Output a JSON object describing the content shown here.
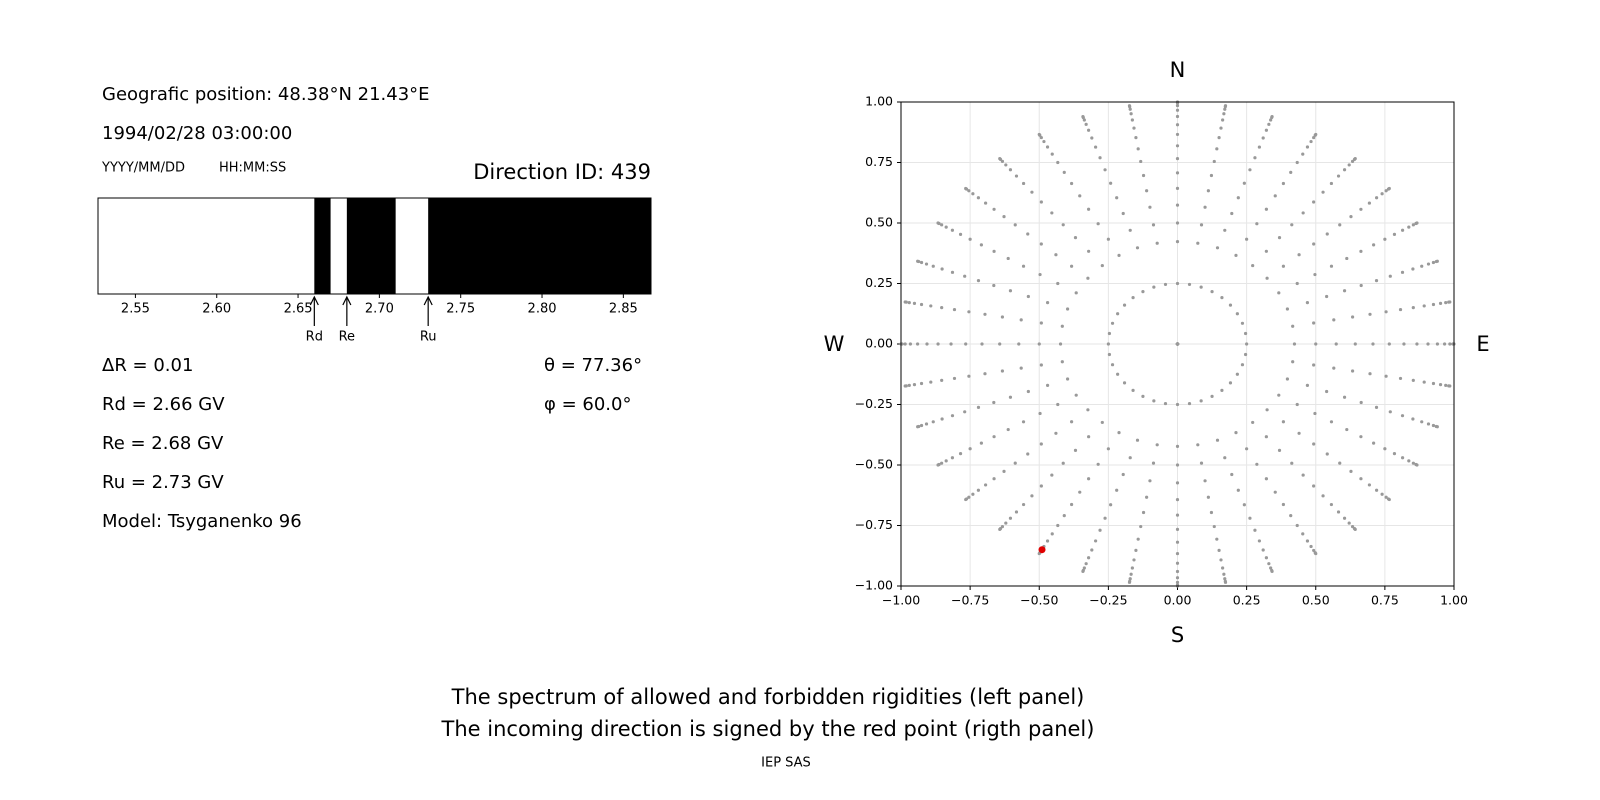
{
  "header": {
    "position": "Geografic position: 48.38°N 21.43°E",
    "datetime": "1994/02/28 03:00:00",
    "date_format": "YYYY/MM/DD",
    "time_format": "HH:MM:SS",
    "direction_id": "Direction ID: 439"
  },
  "info": {
    "delta_r": "ΔR = 0.01",
    "rd": "Rd = 2.66 GV",
    "re": "Re = 2.68 GV",
    "ru": "Ru = 2.73 GV",
    "model": "Model: Tsyganenko 96",
    "theta": "θ = 77.36°",
    "phi": "φ = 60.0°"
  },
  "chart_data": [
    {
      "type": "spectrum",
      "color": "#000000",
      "bands": [
        [
          2.66,
          2.67
        ],
        [
          2.68,
          2.71
        ],
        [
          2.73,
          2.867
        ]
      ],
      "markers": [
        {
          "label": "Rd",
          "value": 2.66
        },
        {
          "label": "Re",
          "value": 2.68
        },
        {
          "label": "Ru",
          "value": 2.73
        }
      ],
      "xlim": [
        2.527,
        2.867
      ],
      "xticks": [
        {
          "value": 2.55,
          "label": "2.55"
        },
        {
          "value": 2.6,
          "label": "2.60"
        },
        {
          "value": 2.65,
          "label": "2.65"
        },
        {
          "value": 2.7,
          "label": "2.70"
        },
        {
          "value": 2.75,
          "label": "2.75"
        },
        {
          "value": 2.8,
          "label": "2.80"
        },
        {
          "value": 2.85,
          "label": "2.85"
        }
      ]
    },
    {
      "type": "sky",
      "color": "#999999",
      "grid": true,
      "compass": {
        "north": "N",
        "south": "S",
        "west": "W",
        "east": "E"
      },
      "radii": [
        0,
        0.25,
        0.423,
        0.5,
        0.574,
        0.643,
        0.707,
        0.766,
        0.819,
        0.866,
        0.906,
        0.94,
        0.966,
        0.985,
        0.996,
        1.0
      ],
      "azimuths": [
        0,
        10,
        20,
        30,
        40,
        50,
        60,
        70,
        80,
        90,
        100,
        110,
        120,
        130,
        140,
        150,
        160,
        170,
        180,
        190,
        200,
        210,
        220,
        230,
        240,
        250,
        260,
        270,
        280,
        290,
        300,
        310,
        320,
        330,
        340,
        350
      ],
      "highlight": {
        "x": -0.49,
        "y": -0.85,
        "color": "#e00000"
      },
      "xlim": [
        -1,
        1
      ],
      "ylim": [
        -1,
        1
      ],
      "xticks": [
        {
          "value": -1,
          "label": "−1.00"
        },
        {
          "value": -0.75,
          "label": "−0.75"
        },
        {
          "value": -0.5,
          "label": "−0.50"
        },
        {
          "value": -0.25,
          "label": "−0.25"
        },
        {
          "value": 0,
          "label": "0.00"
        },
        {
          "value": 0.25,
          "label": "0.25"
        },
        {
          "value": 0.5,
          "label": "0.50"
        },
        {
          "value": 0.75,
          "label": "0.75"
        },
        {
          "value": 1,
          "label": "1.00"
        }
      ],
      "yticks": [
        {
          "value": -1,
          "label": "−1.00"
        },
        {
          "value": -0.75,
          "label": "−0.75"
        },
        {
          "value": -0.5,
          "label": "−0.50"
        },
        {
          "value": -0.25,
          "label": "−0.25"
        },
        {
          "value": 0,
          "label": "0.00"
        },
        {
          "value": 0.25,
          "label": "0.25"
        },
        {
          "value": 0.5,
          "label": "0.50"
        },
        {
          "value": 0.75,
          "label": "0.75"
        },
        {
          "value": 1,
          "label": "1.00"
        }
      ]
    }
  ],
  "footer": {
    "line1": "The spectrum of allowed and forbidden rigidities (left panel)",
    "line2": "The incoming direction is signed by the red point (rigth panel)",
    "credit": "IEP SAS"
  }
}
